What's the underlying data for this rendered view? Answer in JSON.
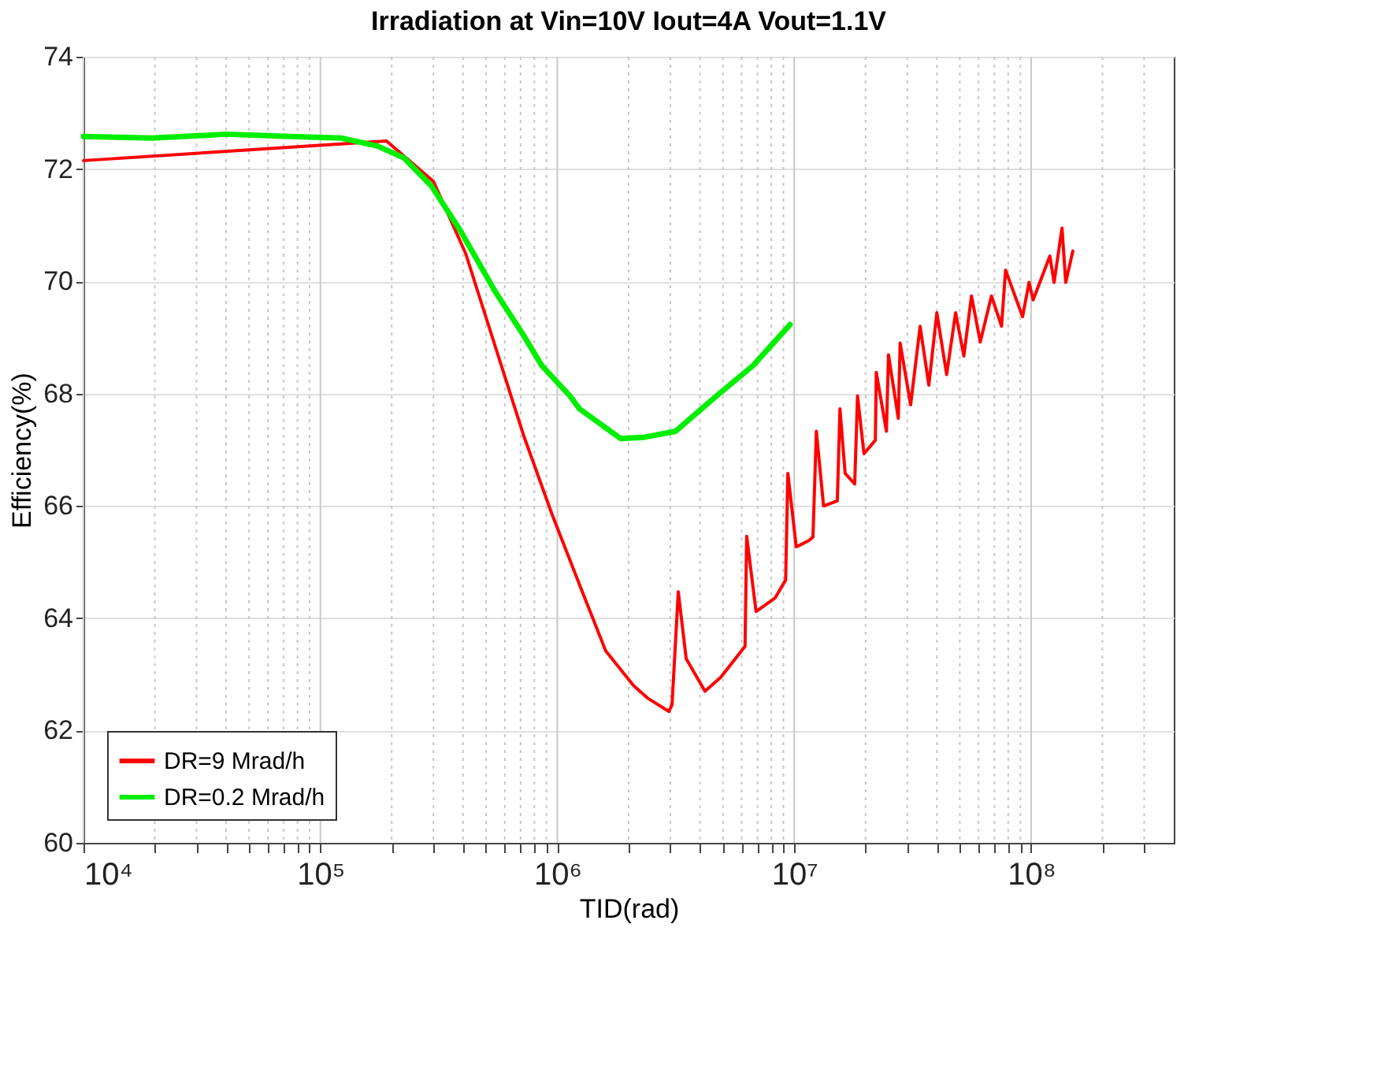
{
  "chart_data": {
    "type": "line",
    "title": "Irradiation at Vin=10V Iout=4A Vout=1.1V",
    "xlabel": "TID(rad)",
    "ylabel": "Efficiency(%)",
    "log": "x",
    "grid": true,
    "legend": "bottom left",
    "xlim": [
      10000,
      400000000
    ],
    "xticks": [
      {
        "value": 10000,
        "label": "10⁴"
      },
      {
        "value": 20000,
        "label": null
      },
      {
        "value": 30000,
        "label": null
      },
      {
        "value": 40000,
        "label": null
      },
      {
        "value": 50000,
        "label": null
      },
      {
        "value": 60000,
        "label": null
      },
      {
        "value": 70000,
        "label": null
      },
      {
        "value": 80000,
        "label": null
      },
      {
        "value": 90000,
        "label": null
      },
      {
        "value": 100000,
        "label": "10⁵"
      },
      {
        "value": 200000,
        "label": null
      },
      {
        "value": 300000,
        "label": null
      },
      {
        "value": 400000,
        "label": null
      },
      {
        "value": 500000,
        "label": null
      },
      {
        "value": 600000,
        "label": null
      },
      {
        "value": 700000,
        "label": null
      },
      {
        "value": 800000,
        "label": null
      },
      {
        "value": 900000,
        "label": null
      },
      {
        "value": 1000000,
        "label": "10⁶"
      },
      {
        "value": 2000000,
        "label": null
      },
      {
        "value": 3000000,
        "label": null
      },
      {
        "value": 4000000,
        "label": null
      },
      {
        "value": 5000000,
        "label": null
      },
      {
        "value": 6000000,
        "label": null
      },
      {
        "value": 7000000,
        "label": null
      },
      {
        "value": 8000000,
        "label": null
      },
      {
        "value": 9000000,
        "label": null
      },
      {
        "value": 10000000,
        "label": "10⁷"
      },
      {
        "value": 20000000,
        "label": null
      },
      {
        "value": 30000000,
        "label": null
      },
      {
        "value": 40000000,
        "label": null
      },
      {
        "value": 50000000,
        "label": null
      },
      {
        "value": 60000000,
        "label": null
      },
      {
        "value": 70000000,
        "label": null
      },
      {
        "value": 80000000,
        "label": null
      },
      {
        "value": 90000000,
        "label": null
      },
      {
        "value": 100000000,
        "label": "10⁸"
      },
      {
        "value": 200000000,
        "label": null
      },
      {
        "value": 300000000,
        "label": null
      }
    ],
    "ylim": [
      60,
      74
    ],
    "yticks": [
      60,
      62,
      64,
      66,
      68,
      70,
      72,
      74
    ],
    "series": [
      {
        "name": "DR=9 Mrad/h",
        "color": "#ff0000",
        "x": [
          10000,
          190000,
          300000,
          410000,
          720000,
          950000,
          1240000,
          1600000,
          2100000,
          2400000,
          2960000,
          3050000,
          3240000,
          3500000,
          4200000,
          4900000,
          6200000,
          6300000,
          6900000,
          8300000,
          9200000,
          9400000,
          10200000,
          11600000,
          12000000,
          12400000,
          13300000,
          15200000,
          15600000,
          16400000,
          18000000,
          18500000,
          19700000,
          22000000,
          22200000,
          24500000,
          25000000,
          27500000,
          28000000,
          31000000,
          34000000,
          37000000,
          40000000,
          44000000,
          48000000,
          52000000,
          56000000,
          61000000,
          68000000,
          75000000,
          78000000,
          92000000,
          98000000,
          102000000,
          120000000,
          125000000,
          135000000,
          140000000,
          150000000
        ],
        "values": [
          72.15,
          72.5,
          71.78,
          70.5,
          67.26,
          65.85,
          64.6,
          63.42,
          62.8,
          62.58,
          62.34,
          62.46,
          64.47,
          63.28,
          62.7,
          62.95,
          63.5,
          65.46,
          64.12,
          64.36,
          64.68,
          66.58,
          65.27,
          65.39,
          65.45,
          67.33,
          66.0,
          66.09,
          67.73,
          66.58,
          66.39,
          67.96,
          66.93,
          67.17,
          68.38,
          67.33,
          68.69,
          67.56,
          68.9,
          67.8,
          69.2,
          68.15,
          69.44,
          68.34,
          69.44,
          68.67,
          69.74,
          68.92,
          69.74,
          69.2,
          70.2,
          69.37,
          69.98,
          69.67,
          70.45,
          69.98,
          70.95,
          69.98,
          70.54
        ]
      },
      {
        "name": "DR=0.2 Mrad/h",
        "color": "#00ee00",
        "x": [
          10000,
          19500,
          40000,
          75000,
          123000,
          174000,
          225000,
          294000,
          390000,
          550000,
          720000,
          860000,
          1130000,
          1240000,
          1850000,
          2300000,
          3160000,
          4700000,
          6700000,
          9600000
        ],
        "values": [
          72.58,
          72.55,
          72.62,
          72.58,
          72.55,
          72.41,
          72.2,
          71.7,
          70.9,
          69.8,
          69.04,
          68.5,
          67.96,
          67.73,
          67.2,
          67.22,
          67.33,
          67.96,
          68.5,
          69.23
        ]
      }
    ]
  }
}
